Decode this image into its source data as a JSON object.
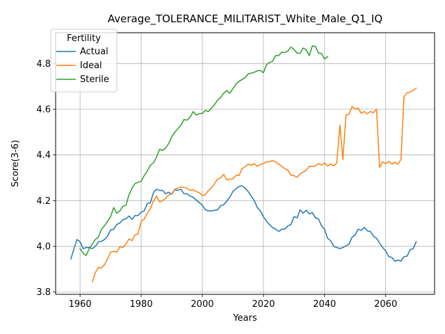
{
  "chart_data": {
    "type": "line",
    "title": "Average_TOLERANCE_MILITARIST_White_Male_Q1_IQ",
    "xlabel": "Years",
    "ylabel": "Score(3-6)",
    "xlim": [
      1952,
      2076
    ],
    "ylim": [
      3.79,
      4.935
    ],
    "xticks": [
      1960,
      1980,
      2000,
      2020,
      2040,
      2060
    ],
    "yticks": [
      3.8,
      4.0,
      4.2,
      4.4,
      4.6,
      4.8
    ],
    "ytick_labels": [
      "3.8",
      "4.0",
      "4.2",
      "4.4",
      "4.6",
      "4.8"
    ],
    "grid": true,
    "legend": {
      "title": "Fertility",
      "placement": "top-left"
    },
    "series": [
      {
        "name": "Actual",
        "color": "#1f77b4",
        "x": [
          1957,
          1958,
          1959,
          1960,
          1961,
          1962,
          1963,
          1964,
          1965,
          1966,
          1967,
          1968,
          1969,
          1970,
          1971,
          1972,
          1973,
          1974,
          1975,
          1976,
          1977,
          1978,
          1979,
          1980,
          1981,
          1982,
          1983,
          1984,
          1985,
          1986,
          1987,
          1988,
          1989,
          1990,
          1991,
          1992,
          1993,
          1994,
          1995,
          1996,
          1997,
          1998,
          1999,
          2000,
          2001,
          2002,
          2003,
          2004,
          2005,
          2006,
          2007,
          2008,
          2009,
          2010,
          2011,
          2012,
          2013,
          2014,
          2015,
          2016,
          2017,
          2018,
          2019,
          2020,
          2021,
          2022,
          2023,
          2024,
          2025,
          2026,
          2027,
          2028,
          2029,
          2030,
          2031,
          2032,
          2033,
          2034,
          2035,
          2036,
          2037,
          2038,
          2039,
          2040,
          2041,
          2042,
          2043,
          2044,
          2045,
          2046,
          2047,
          2048,
          2049,
          2050,
          2051,
          2052,
          2053,
          2054,
          2055,
          2056,
          2057,
          2058,
          2059,
          2060,
          2061,
          2062,
          2063,
          2064,
          2065,
          2066,
          2067,
          2068,
          2069,
          2070
        ],
        "y": [
          3.945,
          3.99,
          4.03,
          4.02,
          3.99,
          3.995,
          3.995,
          3.99,
          4.0,
          4.02,
          4.022,
          4.03,
          4.045,
          4.072,
          4.075,
          4.096,
          4.102,
          4.117,
          4.12,
          4.133,
          4.118,
          4.135,
          4.135,
          4.15,
          4.155,
          4.188,
          4.19,
          4.235,
          4.25,
          4.245,
          4.245,
          4.23,
          4.237,
          4.228,
          4.248,
          4.245,
          4.25,
          4.23,
          4.23,
          4.22,
          4.215,
          4.203,
          4.192,
          4.18,
          4.16,
          4.155,
          4.155,
          4.158,
          4.16,
          4.178,
          4.182,
          4.198,
          4.215,
          4.24,
          4.252,
          4.262,
          4.265,
          4.255,
          4.24,
          4.22,
          4.2,
          4.17,
          4.155,
          4.13,
          4.11,
          4.095,
          4.082,
          4.075,
          4.065,
          4.075,
          4.075,
          4.09,
          4.095,
          4.13,
          4.125,
          4.16,
          4.145,
          4.158,
          4.142,
          4.148,
          4.125,
          4.12,
          4.09,
          4.075,
          4.035,
          4.025,
          4.0,
          3.995,
          3.99,
          3.995,
          4.002,
          4.01,
          4.04,
          4.05,
          4.075,
          4.07,
          4.083,
          4.068,
          4.065,
          4.045,
          4.035,
          4.015,
          3.995,
          3.98,
          3.955,
          3.952,
          3.935,
          3.94,
          3.935,
          3.955,
          3.957,
          3.985,
          3.99,
          4.02
        ]
      },
      {
        "name": "Ideal",
        "color": "#ff7f0e",
        "x": [
          1964,
          1965,
          1966,
          1967,
          1968,
          1969,
          1970,
          1971,
          1972,
          1973,
          1974,
          1975,
          1976,
          1977,
          1978,
          1979,
          1980,
          1981,
          1982,
          1983,
          1984,
          1985,
          1986,
          1987,
          1988,
          1989,
          1990,
          1991,
          1992,
          1993,
          1994,
          1995,
          1996,
          1997,
          1998,
          1999,
          2000,
          2001,
          2002,
          2003,
          2004,
          2005,
          2006,
          2007,
          2008,
          2009,
          2010,
          2011,
          2012,
          2013,
          2014,
          2015,
          2016,
          2017,
          2018,
          2019,
          2020,
          2021,
          2022,
          2023,
          2024,
          2025,
          2026,
          2027,
          2028,
          2029,
          2030,
          2031,
          2032,
          2033,
          2034,
          2035,
          2036,
          2037,
          2038,
          2039,
          2040,
          2041,
          2042,
          2043,
          2044,
          2045,
          2046,
          2047,
          2048,
          2049,
          2050,
          2051,
          2052,
          2053,
          2054,
          2055,
          2056,
          2057,
          2058,
          2059,
          2060,
          2061,
          2062,
          2063,
          2064,
          2065,
          2066,
          2067,
          2068,
          2069,
          2070
        ],
        "y": [
          3.845,
          3.885,
          3.908,
          3.905,
          3.92,
          3.945,
          3.975,
          3.978,
          3.975,
          3.998,
          3.995,
          4.01,
          4.032,
          4.025,
          4.05,
          4.055,
          4.11,
          4.12,
          4.145,
          4.165,
          4.198,
          4.22,
          4.195,
          4.2,
          4.21,
          4.225,
          4.23,
          4.25,
          4.255,
          4.26,
          4.258,
          4.255,
          4.245,
          4.248,
          4.24,
          4.235,
          4.222,
          4.225,
          4.245,
          4.255,
          4.275,
          4.295,
          4.3,
          4.315,
          4.29,
          4.295,
          4.295,
          4.31,
          4.31,
          4.34,
          4.348,
          4.36,
          4.355,
          4.362,
          4.35,
          4.358,
          4.362,
          4.37,
          4.37,
          4.375,
          4.37,
          4.36,
          4.35,
          4.34,
          4.333,
          4.312,
          4.31,
          4.302,
          4.318,
          4.325,
          4.333,
          4.35,
          4.35,
          4.352,
          4.362,
          4.356,
          4.365,
          4.352,
          4.36,
          4.352,
          4.365,
          4.53,
          4.38,
          4.575,
          4.578,
          4.612,
          4.6,
          4.605,
          4.582,
          4.59,
          4.58,
          4.59,
          4.585,
          4.6,
          4.345,
          4.37,
          4.362,
          4.372,
          4.36,
          4.368,
          4.36,
          4.38,
          4.655,
          4.672,
          4.676,
          4.682,
          4.692
        ]
      },
      {
        "name": "Sterile",
        "color": "#2ca02c",
        "x": [
          1960,
          1961,
          1962,
          1963,
          1964,
          1965,
          1966,
          1967,
          1968,
          1969,
          1970,
          1971,
          1972,
          1973,
          1974,
          1975,
          1976,
          1977,
          1978,
          1979,
          1980,
          1981,
          1982,
          1983,
          1984,
          1985,
          1986,
          1987,
          1988,
          1989,
          1990,
          1991,
          1992,
          1993,
          1994,
          1995,
          1996,
          1997,
          1998,
          1999,
          2000,
          2001,
          2002,
          2003,
          2004,
          2005,
          2006,
          2007,
          2008,
          2009,
          2010,
          2011,
          2012,
          2013,
          2014,
          2015,
          2016,
          2017,
          2018,
          2019,
          2020,
          2021,
          2022,
          2023,
          2024,
          2025,
          2026,
          2027,
          2028,
          2029,
          2030,
          2031,
          2032,
          2033,
          2034,
          2035,
          2036,
          2037,
          2038,
          2039,
          2040,
          2041
        ],
        "y": [
          3.99,
          3.97,
          3.96,
          3.99,
          4.01,
          4.03,
          4.04,
          4.075,
          4.09,
          4.11,
          4.13,
          4.17,
          4.145,
          4.155,
          4.175,
          4.18,
          4.225,
          4.255,
          4.275,
          4.28,
          4.285,
          4.31,
          4.33,
          4.355,
          4.365,
          4.39,
          4.425,
          4.42,
          4.43,
          4.45,
          4.48,
          4.5,
          4.515,
          4.53,
          4.555,
          4.552,
          4.565,
          4.59,
          4.575,
          4.58,
          4.582,
          4.595,
          4.59,
          4.605,
          4.62,
          4.64,
          4.652,
          4.67,
          4.682,
          4.67,
          4.69,
          4.71,
          4.722,
          4.73,
          4.738,
          4.755,
          4.758,
          4.762,
          4.768,
          4.77,
          4.76,
          4.795,
          4.805,
          4.81,
          4.835,
          4.835,
          4.85,
          4.848,
          4.855,
          4.872,
          4.862,
          4.845,
          4.845,
          4.868,
          4.86,
          4.835,
          4.877,
          4.875,
          4.845,
          4.845,
          4.82,
          4.83
        ]
      }
    ]
  }
}
